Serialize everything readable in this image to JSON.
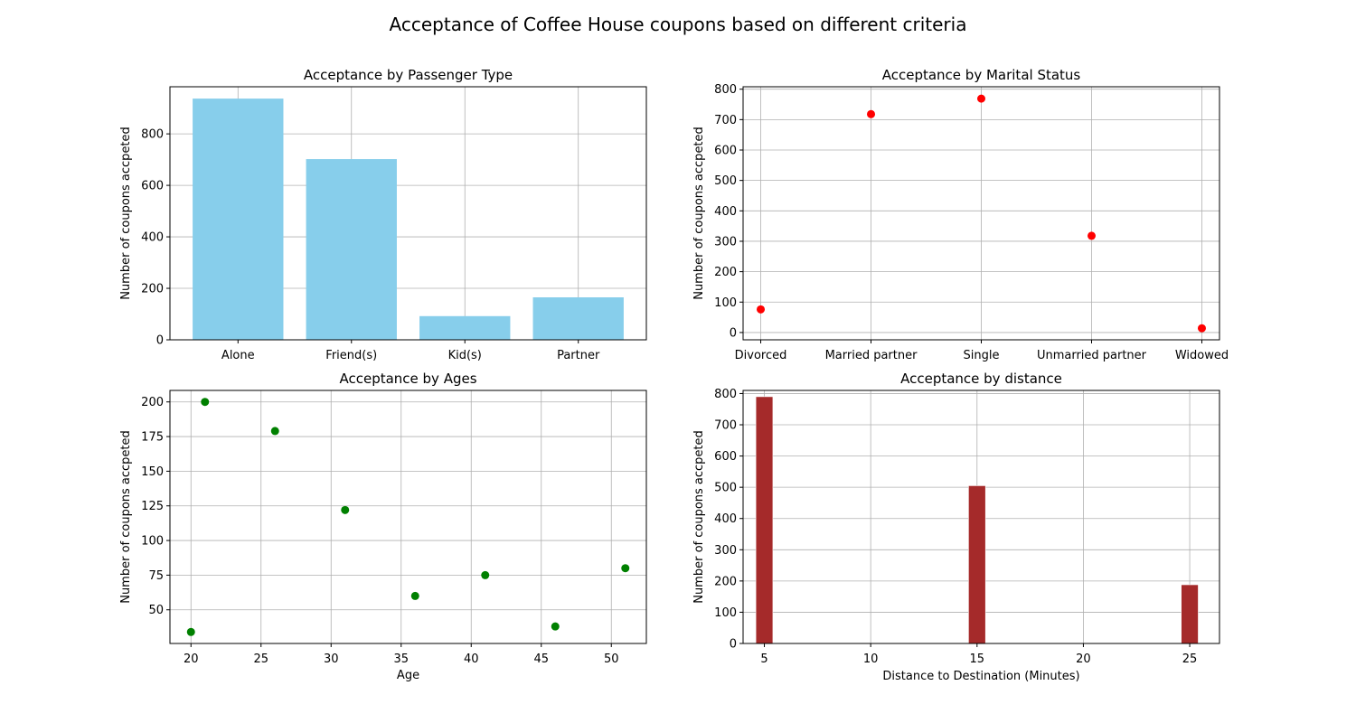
{
  "figure_title": "Acceptance of Coffee House coupons based on different criteria",
  "chart_data": [
    {
      "type": "bar",
      "title": "Acceptance by Passenger Type",
      "xlabel": "",
      "ylabel": "Number of coupons accpeted",
      "categories": [
        "Alone",
        "Friend(s)",
        "Kid(s)",
        "Partner"
      ],
      "values": [
        937,
        702,
        92,
        165
      ],
      "ylim": [
        0,
        983
      ],
      "yticks": [
        0,
        200,
        400,
        600,
        800
      ],
      "grid": true,
      "color": "#87ceeb"
    },
    {
      "type": "scatter",
      "title": "Acceptance by Marital Status",
      "xlabel": "",
      "ylabel": "Number of coupons accpeted",
      "categories": [
        "Divorced",
        "Married partner",
        "Single",
        "Unmarried partner",
        "Widowed"
      ],
      "values": [
        76,
        718,
        769,
        318,
        14
      ],
      "ylim": [
        -24,
        808
      ],
      "yticks": [
        0,
        100,
        200,
        300,
        400,
        500,
        600,
        700,
        800
      ],
      "grid": true,
      "color": "#ff0000"
    },
    {
      "type": "scatter",
      "title": "Acceptance by Ages",
      "xlabel": "Age",
      "ylabel": "Number of coupons accpeted",
      "x": [
        20,
        21,
        26,
        31,
        36,
        41,
        46,
        51
      ],
      "values": [
        34,
        200,
        179,
        122,
        60,
        75,
        38,
        80
      ],
      "xlim": [
        18.5,
        52.5
      ],
      "ylim": [
        25.7,
        208.3
      ],
      "xticks": [
        20,
        25,
        30,
        35,
        40,
        45,
        50
      ],
      "yticks": [
        50,
        75,
        100,
        125,
        150,
        175,
        200
      ],
      "grid": true,
      "color": "#008000"
    },
    {
      "type": "bar",
      "title": "Acceptance by distance",
      "xlabel": "Distance to Destination (Minutes)",
      "ylabel": "Number of coupons accpeted",
      "x": [
        5,
        15,
        25
      ],
      "values": [
        790,
        505,
        188
      ],
      "bar_width": 0.8,
      "xlim": [
        4,
        26.4
      ],
      "ylim": [
        0,
        810
      ],
      "xticks": [
        5,
        10,
        15,
        20,
        25
      ],
      "yticks": [
        0,
        100,
        200,
        300,
        400,
        500,
        600,
        700,
        800
      ],
      "grid": true,
      "color": "#a52a2a"
    }
  ]
}
